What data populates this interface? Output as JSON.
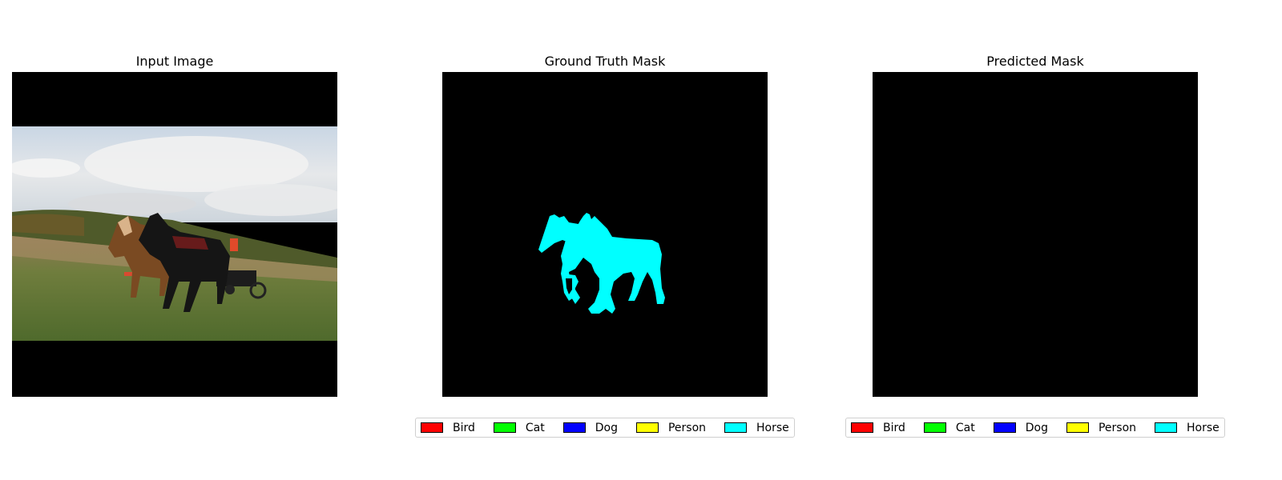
{
  "panels": [
    {
      "title": "Input Image"
    },
    {
      "title": "Ground Truth Mask"
    },
    {
      "title": "Predicted Mask"
    }
  ],
  "legend": [
    {
      "label": "Bird",
      "color": "#ff0000"
    },
    {
      "label": "Cat",
      "color": "#00ff00"
    },
    {
      "label": "Dog",
      "color": "#0000ff"
    },
    {
      "label": "Person",
      "color": "#ffff00"
    },
    {
      "label": "Horse",
      "color": "#00ffff"
    }
  ],
  "colors": {
    "mask_background": "#000000",
    "horse_mask": "#00ffff"
  }
}
